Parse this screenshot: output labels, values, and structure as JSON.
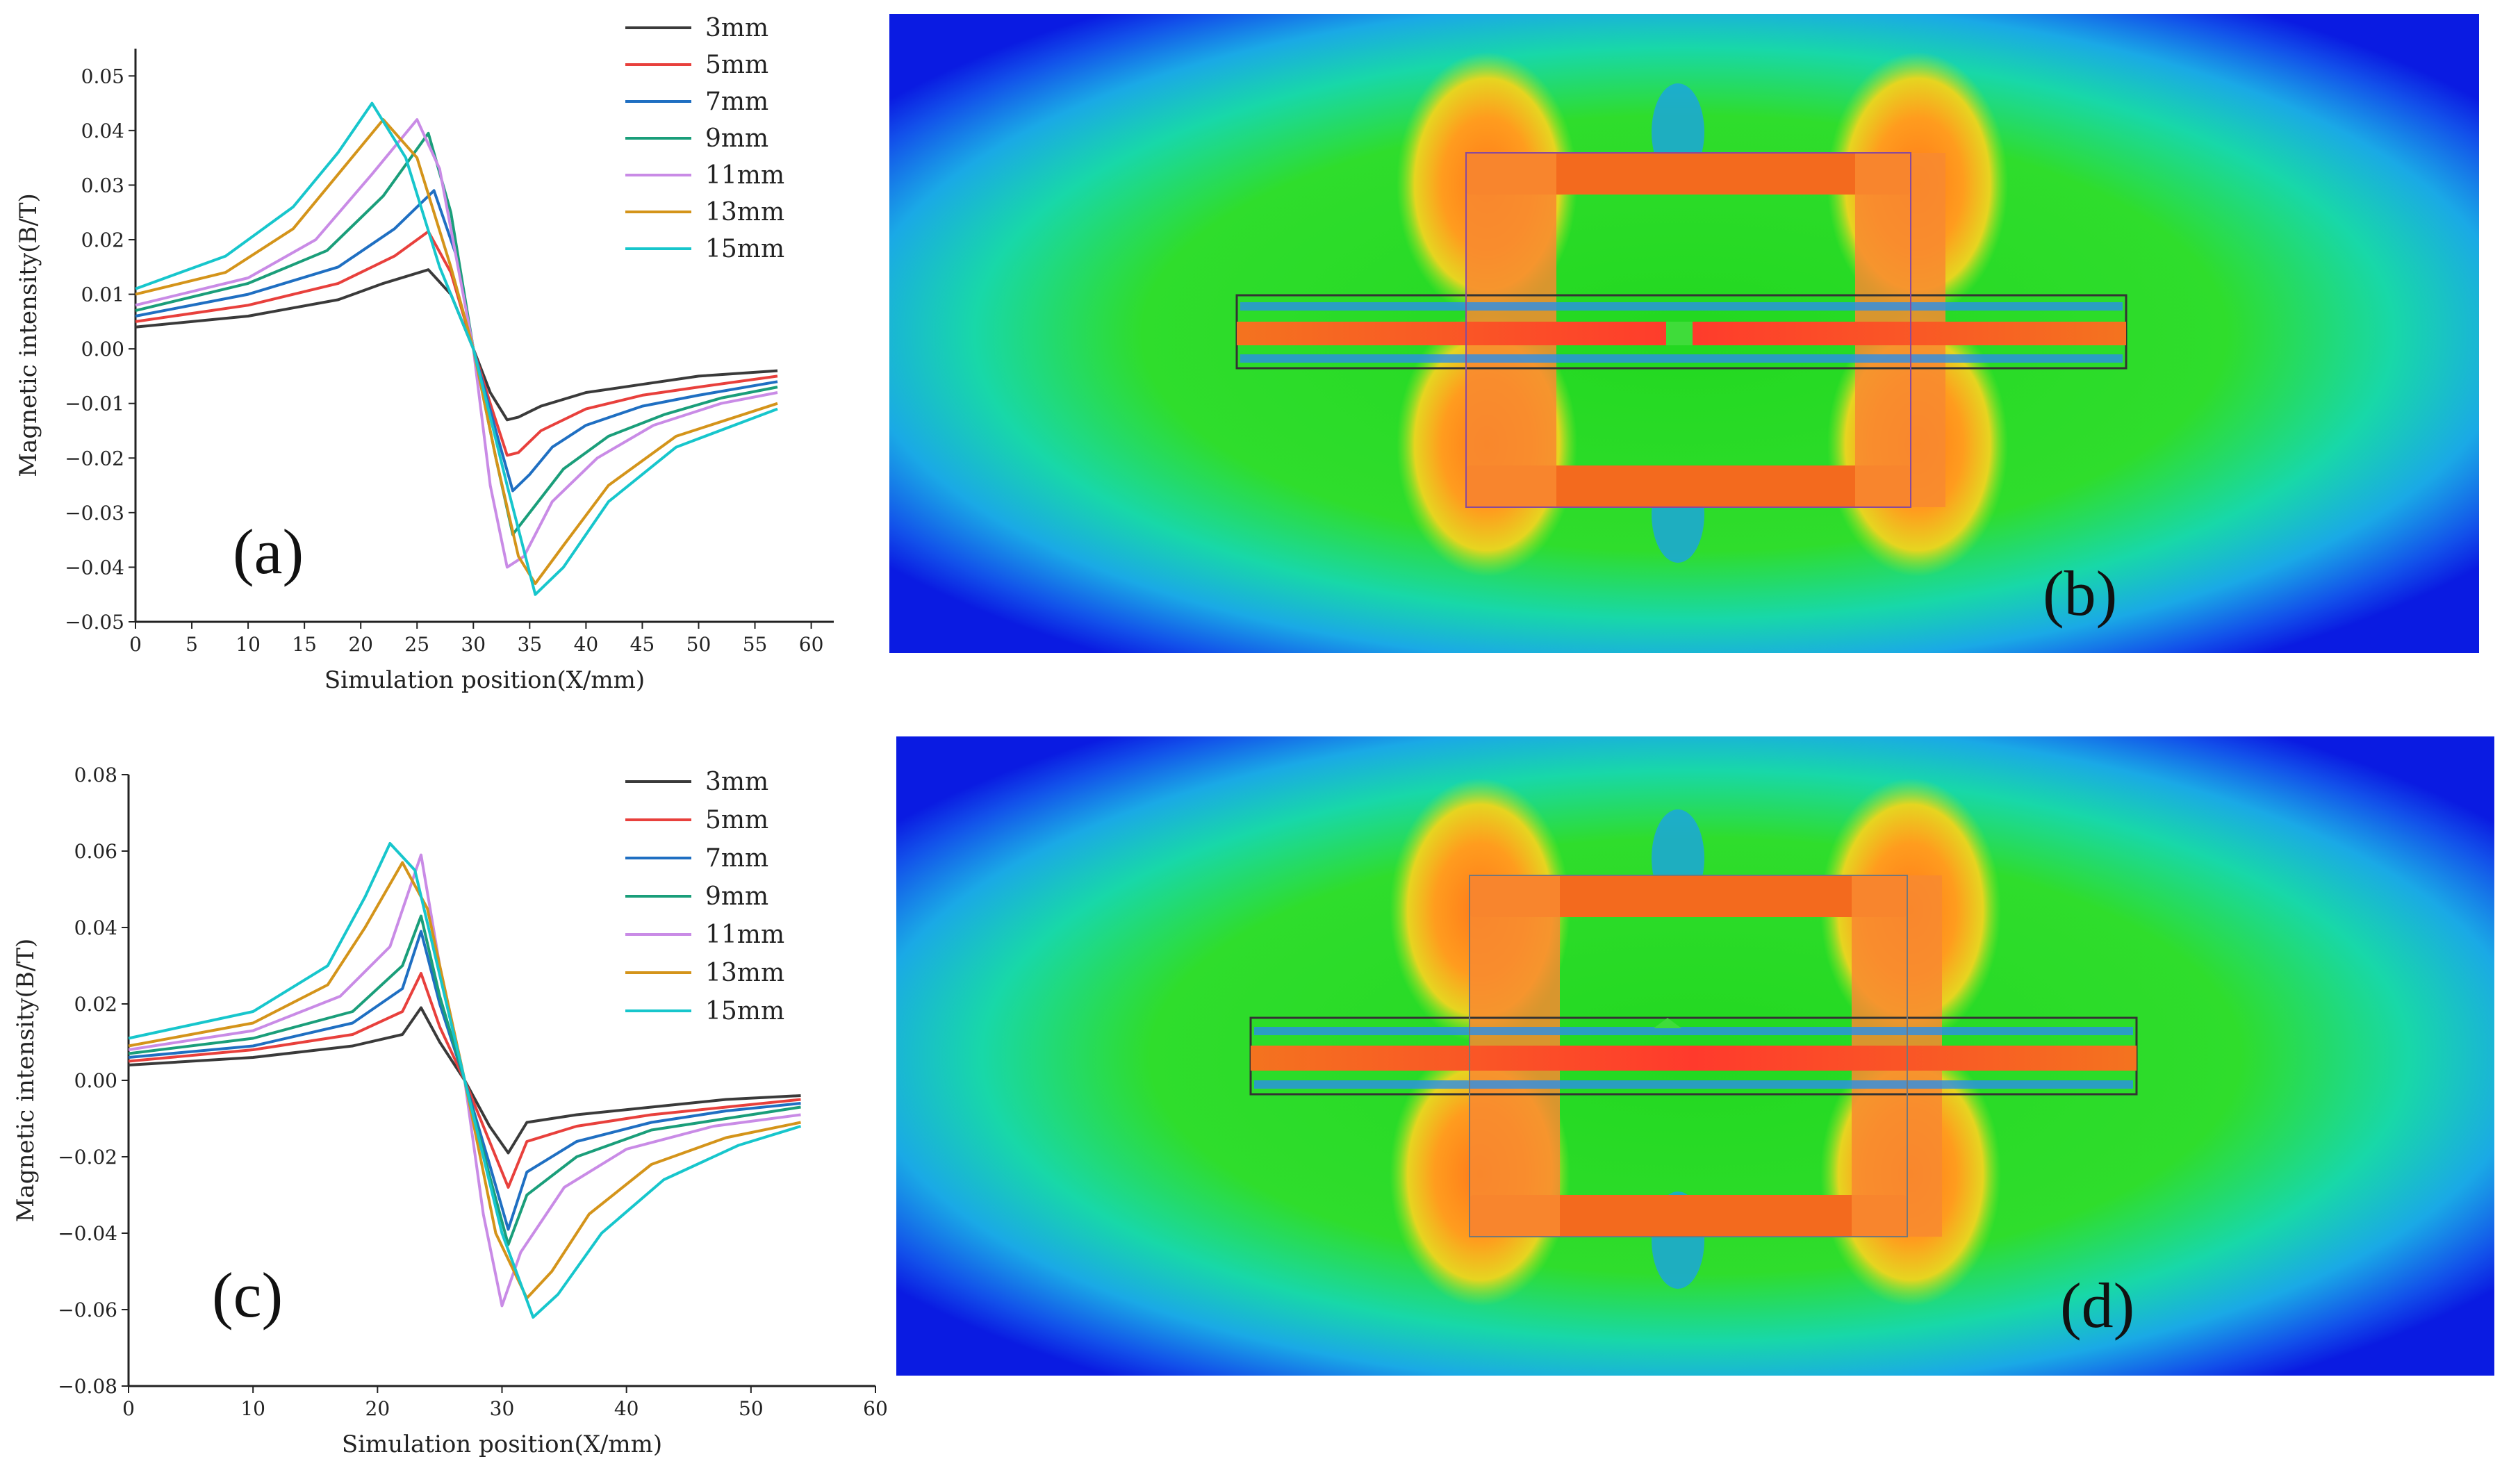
{
  "panels": {
    "a": "(a)",
    "b": "(b)",
    "c": "(c)",
    "d": "(d)"
  },
  "chart_data": [
    {
      "type": "line",
      "panel": "(a)",
      "xlabel": "Simulation position(X/mm)",
      "ylabel": "Magnetic intensity(B/T)",
      "xlim": [
        0,
        62
      ],
      "ylim": [
        -0.05,
        0.055
      ],
      "xticks": [
        0,
        5,
        10,
        15,
        20,
        25,
        30,
        35,
        40,
        45,
        50,
        55,
        60
      ],
      "yticks": [
        "-0.05",
        "-0.04",
        "-0.03",
        "-0.02",
        "-0.01",
        "0.00",
        "0.01",
        "0.02",
        "0.03",
        "0.04",
        "0.05"
      ],
      "legend_position": "top-right",
      "grid": false,
      "series": [
        {
          "name": "3mm",
          "color": "#3a3a3a",
          "points": [
            [
              0,
              0.004
            ],
            [
              10,
              0.006
            ],
            [
              18,
              0.009
            ],
            [
              22,
              0.012
            ],
            [
              26,
              0.0145
            ],
            [
              28,
              0.01
            ],
            [
              30,
              0.0
            ],
            [
              31.5,
              -0.008
            ],
            [
              33,
              -0.013
            ],
            [
              34,
              -0.0125
            ],
            [
              36,
              -0.0105
            ],
            [
              40,
              -0.008
            ],
            [
              45,
              -0.0065
            ],
            [
              50,
              -0.005
            ],
            [
              57,
              -0.004
            ]
          ]
        },
        {
          "name": "5mm",
          "color": "#e8403c",
          "points": [
            [
              0,
              0.005
            ],
            [
              10,
              0.008
            ],
            [
              18,
              0.012
            ],
            [
              23,
              0.017
            ],
            [
              26,
              0.0215
            ],
            [
              28,
              0.014
            ],
            [
              30,
              0.0
            ],
            [
              31.5,
              -0.01
            ],
            [
              33,
              -0.0195
            ],
            [
              34,
              -0.019
            ],
            [
              36,
              -0.015
            ],
            [
              40,
              -0.011
            ],
            [
              45,
              -0.0085
            ],
            [
              50,
              -0.007
            ],
            [
              57,
              -0.005
            ]
          ]
        },
        {
          "name": "7mm",
          "color": "#1f6fc2",
          "points": [
            [
              0,
              0.006
            ],
            [
              10,
              0.01
            ],
            [
              18,
              0.015
            ],
            [
              23,
              0.022
            ],
            [
              26.5,
              0.029
            ],
            [
              28.5,
              0.017
            ],
            [
              30,
              0.0
            ],
            [
              32,
              -0.015
            ],
            [
              33.5,
              -0.026
            ],
            [
              35,
              -0.023
            ],
            [
              37,
              -0.018
            ],
            [
              40,
              -0.014
            ],
            [
              45,
              -0.0105
            ],
            [
              50,
              -0.0085
            ],
            [
              57,
              -0.006
            ]
          ]
        },
        {
          "name": "9mm",
          "color": "#1a9e7a",
          "points": [
            [
              0,
              0.007
            ],
            [
              10,
              0.012
            ],
            [
              17,
              0.018
            ],
            [
              22,
              0.028
            ],
            [
              26,
              0.0395
            ],
            [
              28,
              0.025
            ],
            [
              30,
              0.0
            ],
            [
              32,
              -0.02
            ],
            [
              33.5,
              -0.034
            ],
            [
              35,
              -0.03
            ],
            [
              38,
              -0.022
            ],
            [
              42,
              -0.016
            ],
            [
              47,
              -0.012
            ],
            [
              52,
              -0.009
            ],
            [
              57,
              -0.007
            ]
          ]
        },
        {
          "name": "11mm",
          "color": "#c98be6",
          "points": [
            [
              0,
              0.008
            ],
            [
              10,
              0.013
            ],
            [
              16,
              0.02
            ],
            [
              21,
              0.032
            ],
            [
              25,
              0.042
            ],
            [
              27,
              0.033
            ],
            [
              30,
              0.0
            ],
            [
              31.5,
              -0.025
            ],
            [
              33,
              -0.04
            ],
            [
              34.5,
              -0.038
            ],
            [
              37,
              -0.028
            ],
            [
              41,
              -0.02
            ],
            [
              46,
              -0.014
            ],
            [
              52,
              -0.01
            ],
            [
              57,
              -0.008
            ]
          ]
        },
        {
          "name": "13mm",
          "color": "#d4941a",
          "points": [
            [
              0,
              0.01
            ],
            [
              8,
              0.014
            ],
            [
              14,
              0.022
            ],
            [
              18,
              0.032
            ],
            [
              22,
              0.042
            ],
            [
              25,
              0.035
            ],
            [
              28,
              0.015
            ],
            [
              30,
              0.0
            ],
            [
              32,
              -0.02
            ],
            [
              34,
              -0.038
            ],
            [
              35.5,
              -0.043
            ],
            [
              38,
              -0.036
            ],
            [
              42,
              -0.025
            ],
            [
              48,
              -0.016
            ],
            [
              57,
              -0.01
            ]
          ]
        },
        {
          "name": "15mm",
          "color": "#17c6cc",
          "points": [
            [
              0,
              0.011
            ],
            [
              8,
              0.017
            ],
            [
              14,
              0.026
            ],
            [
              18,
              0.036
            ],
            [
              21,
              0.045
            ],
            [
              24,
              0.035
            ],
            [
              27,
              0.015
            ],
            [
              30,
              0.0
            ],
            [
              33,
              -0.025
            ],
            [
              35.5,
              -0.045
            ],
            [
              38,
              -0.04
            ],
            [
              42,
              -0.028
            ],
            [
              48,
              -0.018
            ],
            [
              57,
              -0.011
            ]
          ]
        }
      ]
    },
    {
      "type": "line",
      "panel": "(c)",
      "xlabel": "Simulation position(X/mm)",
      "ylabel": "Magnetic intensity(B/T)",
      "xlim": [
        0,
        60
      ],
      "ylim": [
        -0.08,
        0.08
      ],
      "xticks": [
        0,
        10,
        20,
        30,
        40,
        50,
        60
      ],
      "yticks": [
        "-0.08",
        "-0.06",
        "-0.04",
        "-0.02",
        "0.00",
        "0.02",
        "0.04",
        "0.06",
        "0.08"
      ],
      "legend_position": "top-right",
      "grid": false,
      "series": [
        {
          "name": "3mm",
          "color": "#3a3a3a",
          "points": [
            [
              0,
              0.004
            ],
            [
              10,
              0.006
            ],
            [
              18,
              0.009
            ],
            [
              22,
              0.012
            ],
            [
              23.5,
              0.019
            ],
            [
              25,
              0.01
            ],
            [
              27,
              0.0
            ],
            [
              29,
              -0.012
            ],
            [
              30.5,
              -0.019
            ],
            [
              32,
              -0.011
            ],
            [
              36,
              -0.009
            ],
            [
              42,
              -0.007
            ],
            [
              48,
              -0.005
            ],
            [
              54,
              -0.004
            ]
          ]
        },
        {
          "name": "5mm",
          "color": "#e8403c",
          "points": [
            [
              0,
              0.005
            ],
            [
              10,
              0.008
            ],
            [
              18,
              0.012
            ],
            [
              22,
              0.018
            ],
            [
              23.5,
              0.028
            ],
            [
              25,
              0.014
            ],
            [
              27,
              0.0
            ],
            [
              29,
              -0.016
            ],
            [
              30.5,
              -0.028
            ],
            [
              32,
              -0.016
            ],
            [
              36,
              -0.012
            ],
            [
              42,
              -0.009
            ],
            [
              48,
              -0.007
            ],
            [
              54,
              -0.005
            ]
          ]
        },
        {
          "name": "7mm",
          "color": "#1f6fc2",
          "points": [
            [
              0,
              0.006
            ],
            [
              10,
              0.009
            ],
            [
              18,
              0.015
            ],
            [
              22,
              0.024
            ],
            [
              23.5,
              0.039
            ],
            [
              25,
              0.02
            ],
            [
              27,
              0.0
            ],
            [
              29,
              -0.022
            ],
            [
              30.5,
              -0.039
            ],
            [
              32,
              -0.024
            ],
            [
              36,
              -0.016
            ],
            [
              42,
              -0.011
            ],
            [
              48,
              -0.008
            ],
            [
              54,
              -0.006
            ]
          ]
        },
        {
          "name": "9mm",
          "color": "#1a9e7a",
          "points": [
            [
              0,
              0.007
            ],
            [
              10,
              0.011
            ],
            [
              18,
              0.018
            ],
            [
              22,
              0.03
            ],
            [
              23.5,
              0.043
            ],
            [
              25,
              0.022
            ],
            [
              27,
              0.0
            ],
            [
              29,
              -0.025
            ],
            [
              30.5,
              -0.043
            ],
            [
              32,
              -0.03
            ],
            [
              36,
              -0.02
            ],
            [
              42,
              -0.013
            ],
            [
              48,
              -0.01
            ],
            [
              54,
              -0.007
            ]
          ]
        },
        {
          "name": "11mm",
          "color": "#c98be6",
          "points": [
            [
              0,
              0.008
            ],
            [
              10,
              0.013
            ],
            [
              17,
              0.022
            ],
            [
              21,
              0.035
            ],
            [
              23.5,
              0.059
            ],
            [
              25,
              0.03
            ],
            [
              27,
              0.0
            ],
            [
              28.5,
              -0.035
            ],
            [
              30,
              -0.059
            ],
            [
              31.5,
              -0.045
            ],
            [
              35,
              -0.028
            ],
            [
              40,
              -0.018
            ],
            [
              47,
              -0.012
            ],
            [
              54,
              -0.009
            ]
          ]
        },
        {
          "name": "13mm",
          "color": "#d4941a",
          "points": [
            [
              0,
              0.009
            ],
            [
              10,
              0.015
            ],
            [
              16,
              0.025
            ],
            [
              19,
              0.04
            ],
            [
              22,
              0.057
            ],
            [
              24,
              0.045
            ],
            [
              27,
              0.0
            ],
            [
              29.5,
              -0.04
            ],
            [
              32,
              -0.057
            ],
            [
              34,
              -0.05
            ],
            [
              37,
              -0.035
            ],
            [
              42,
              -0.022
            ],
            [
              48,
              -0.015
            ],
            [
              54,
              -0.011
            ]
          ]
        },
        {
          "name": "15mm",
          "color": "#17c6cc",
          "points": [
            [
              0,
              0.011
            ],
            [
              10,
              0.018
            ],
            [
              16,
              0.03
            ],
            [
              19,
              0.048
            ],
            [
              21,
              0.062
            ],
            [
              23,
              0.055
            ],
            [
              27,
              0.0
            ],
            [
              30,
              -0.04
            ],
            [
              32.5,
              -0.062
            ],
            [
              34.5,
              -0.056
            ],
            [
              38,
              -0.04
            ],
            [
              43,
              -0.026
            ],
            [
              49,
              -0.017
            ],
            [
              54,
              -0.012
            ]
          ]
        }
      ]
    }
  ]
}
